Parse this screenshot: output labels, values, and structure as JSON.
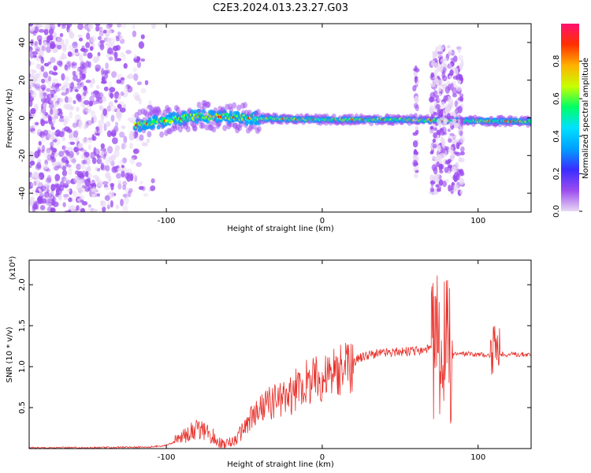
{
  "title": "C2E3.2024.013.23.27.G03",
  "chart_data": [
    {
      "type": "heatmap",
      "title": "",
      "xlabel": "Height of straight line (km)",
      "ylabel": "Frequency (Hz)",
      "xlim": [
        -188,
        134
      ],
      "ylim": [
        -50,
        50
      ],
      "xticks": [
        -100,
        0,
        100
      ],
      "yticks": [
        -40,
        -20,
        0,
        20,
        40
      ],
      "grid": false,
      "colormap": [
        "#e8d8f4",
        "#9b4cf0",
        "#3a2dff",
        "#00a0ff",
        "#00e0ff",
        "#00ff66",
        "#c8ff00",
        "#ffb000",
        "#ff3000",
        "#ff1070"
      ],
      "colorbar": {
        "label": "Normalized spectral amplitude",
        "range": [
          0.0,
          1.0
        ],
        "ticks": [
          "0.0",
          "0.2",
          "0.4",
          "0.6",
          "0.8"
        ]
      },
      "features": [
        {
          "region": "noise",
          "x_range": [
            -188,
            -105
          ],
          "freq_range": [
            -50,
            50
          ],
          "amplitude": 0.05
        },
        {
          "region": "signal band",
          "x_range": [
            -120,
            134
          ],
          "freq_center": [
            [
              -120,
              -4
            ],
            [
              -80,
              1
            ],
            [
              -50,
              0
            ],
            [
              0,
              -1
            ],
            [
              50,
              -1
            ],
            [
              134,
              -2
            ]
          ],
          "amplitude": 0.6
        },
        {
          "region": "burst",
          "x_range": [
            70,
            90
          ],
          "freq_range": [
            -40,
            38
          ],
          "amplitude": 0.15
        },
        {
          "region": "burst",
          "x_range": [
            59,
            61
          ],
          "freq_range": [
            -35,
            30
          ],
          "amplitude": 0.05
        }
      ]
    },
    {
      "type": "line",
      "title": "",
      "xlabel": "Height of straight line (km)",
      "ylabel": "SNR (10 * v/v)",
      "y_multiplier": "(x10⁴)",
      "xlim": [
        -188,
        134
      ],
      "ylim": [
        0.0,
        2.3
      ],
      "xticks": [
        -100,
        0,
        100
      ],
      "yticks": [
        0.5,
        1.0,
        1.5,
        2.0
      ],
      "yticklabels": [
        "0.5",
        "1.0",
        "1.5",
        "2.0"
      ],
      "color": "#e8302a",
      "grid": false,
      "series": [
        {
          "x": [
            -188,
            -150,
            -110,
            -100,
            -95,
            -90,
            -85,
            -80,
            -75,
            -70,
            -65,
            -60,
            -55,
            -50,
            -45,
            -40,
            -35,
            -30,
            -25,
            -20,
            -15,
            -10,
            -5,
            0,
            5,
            10,
            15,
            20,
            25,
            30,
            40,
            50,
            60,
            65,
            70,
            72,
            75,
            78,
            80,
            82,
            85,
            90,
            100,
            108,
            110,
            112,
            115,
            120,
            134
          ],
          "y": [
            0.01,
            0.01,
            0.02,
            0.04,
            0.08,
            0.14,
            0.2,
            0.24,
            0.2,
            0.15,
            0.06,
            0.06,
            0.12,
            0.25,
            0.38,
            0.48,
            0.55,
            0.6,
            0.62,
            0.65,
            0.75,
            0.8,
            0.85,
            0.88,
            0.9,
            0.92,
            0.98,
            1.05,
            1.12,
            1.15,
            1.17,
            1.18,
            1.19,
            1.2,
            1.22,
            1.25,
            1.28,
            1.3,
            1.2,
            1.15,
            1.15,
            1.16,
            1.15,
            1.14,
            1.18,
            1.12,
            1.15,
            1.15,
            1.15
          ]
        }
      ]
    }
  ]
}
